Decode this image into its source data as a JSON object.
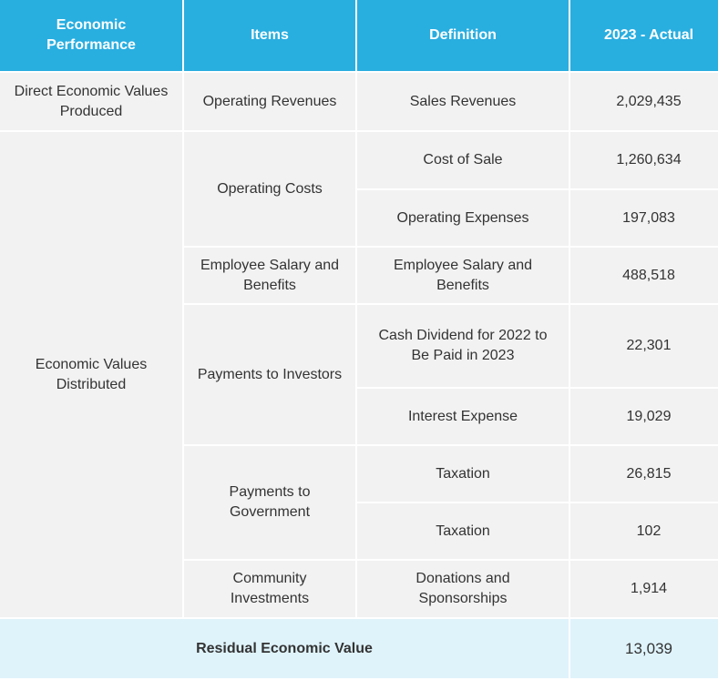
{
  "table": {
    "header": [
      "Economic Performance",
      "Items",
      "Definition",
      "2023 - Actual"
    ],
    "rows": [
      [
        "Direct Economic Values Produced",
        "Operating Revenues",
        "Sales Revenues",
        "2,029,435"
      ],
      [
        "Economic Values Distributed",
        "Operating Costs",
        "Cost of Sale",
        "1,260,634"
      ],
      [
        "Operating Expenses",
        "197,083"
      ],
      [
        "Employee Salary and Benefits",
        "Employee Salary and Benefits",
        "488,518"
      ],
      [
        "Payments to Investors",
        "Cash Dividend for 2022 to Be Paid in 2023",
        "22,301"
      ],
      [
        "Interest Expense",
        "19,029"
      ],
      [
        "Payments to Government",
        "Taxation",
        "26,815"
      ],
      [
        "Taxation",
        "102"
      ],
      [
        "Community Investments",
        "Donations and Sponsorships",
        "1,914"
      ]
    ],
    "footer": [
      "Residual Economic Value",
      "13,039"
    ]
  }
}
